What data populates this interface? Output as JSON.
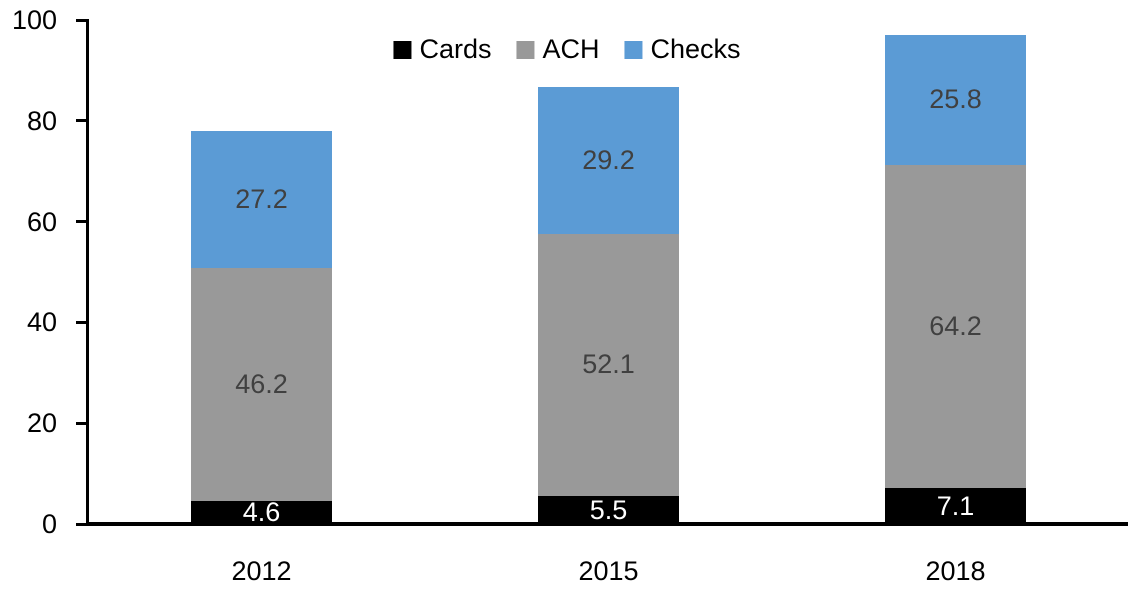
{
  "chart_data": {
    "type": "bar",
    "stacked": true,
    "title": "",
    "xlabel": "",
    "ylabel": "",
    "categories": [
      "2012",
      "2015",
      "2018"
    ],
    "series": [
      {
        "name": "Cards",
        "color": "#000000",
        "label_color": "#ffffff",
        "values": [
          4.6,
          5.5,
          7.1
        ]
      },
      {
        "name": "ACH",
        "color": "#999999",
        "label_color": "#404040",
        "values": [
          46.2,
          52.1,
          64.2
        ]
      },
      {
        "name": "Checks",
        "color": "#5b9bd5",
        "label_color": "#404040",
        "values": [
          27.2,
          29.2,
          25.8
        ]
      }
    ],
    "stack_totals": [
      78.0,
      86.8,
      97.1
    ],
    "ylim": [
      0,
      100
    ],
    "yticks": [
      0,
      20,
      40,
      60,
      80,
      100
    ],
    "legend_position": "top-center",
    "legend_entries": [
      "Cards",
      "ACH",
      "Checks"
    ],
    "grid": false,
    "data_labels": true,
    "axis_color": "#000000"
  }
}
